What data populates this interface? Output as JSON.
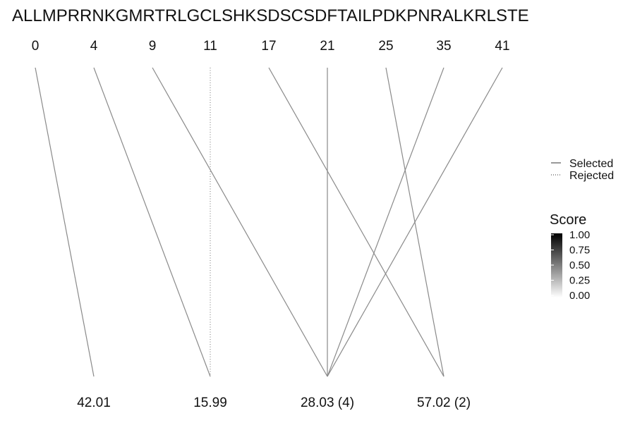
{
  "chart_data": {
    "type": "other",
    "sequence": "ALLMPRRNKGMRTRLGCLSHKSDSCSDFTAILPDKPNRALKRLSTE",
    "top_positions": [
      "0",
      "4",
      "9",
      "11",
      "17",
      "21",
      "25",
      "35",
      "41"
    ],
    "bottom_labels": [
      "42.01",
      "15.99",
      "28.03 (4)",
      "57.02 (2)"
    ],
    "links": [
      {
        "from": 0,
        "to": 0,
        "status": "Selected"
      },
      {
        "from": 1,
        "to": 1,
        "status": "Selected"
      },
      {
        "from": 2,
        "to": 2,
        "status": "Selected"
      },
      {
        "from": 3,
        "to": 1,
        "status": "Rejected"
      },
      {
        "from": 4,
        "to": 3,
        "status": "Selected"
      },
      {
        "from": 5,
        "to": 2,
        "status": "Selected"
      },
      {
        "from": 6,
        "to": 3,
        "status": "Selected"
      },
      {
        "from": 7,
        "to": 2,
        "status": "Selected"
      },
      {
        "from": 8,
        "to": 2,
        "status": "Selected"
      }
    ],
    "legend_linetype": {
      "items": [
        {
          "label": "Selected",
          "style": "solid"
        },
        {
          "label": "Rejected",
          "style": "dotted"
        }
      ],
      "position": "right"
    },
    "legend_score": {
      "title": "Score",
      "ticks": [
        "1.00",
        "0.75",
        "0.50",
        "0.25",
        "0.00"
      ],
      "range": [
        0,
        1
      ],
      "color_high": "#000000",
      "color_low": "#ffffff"
    },
    "line_color": "#8a8a8a"
  }
}
